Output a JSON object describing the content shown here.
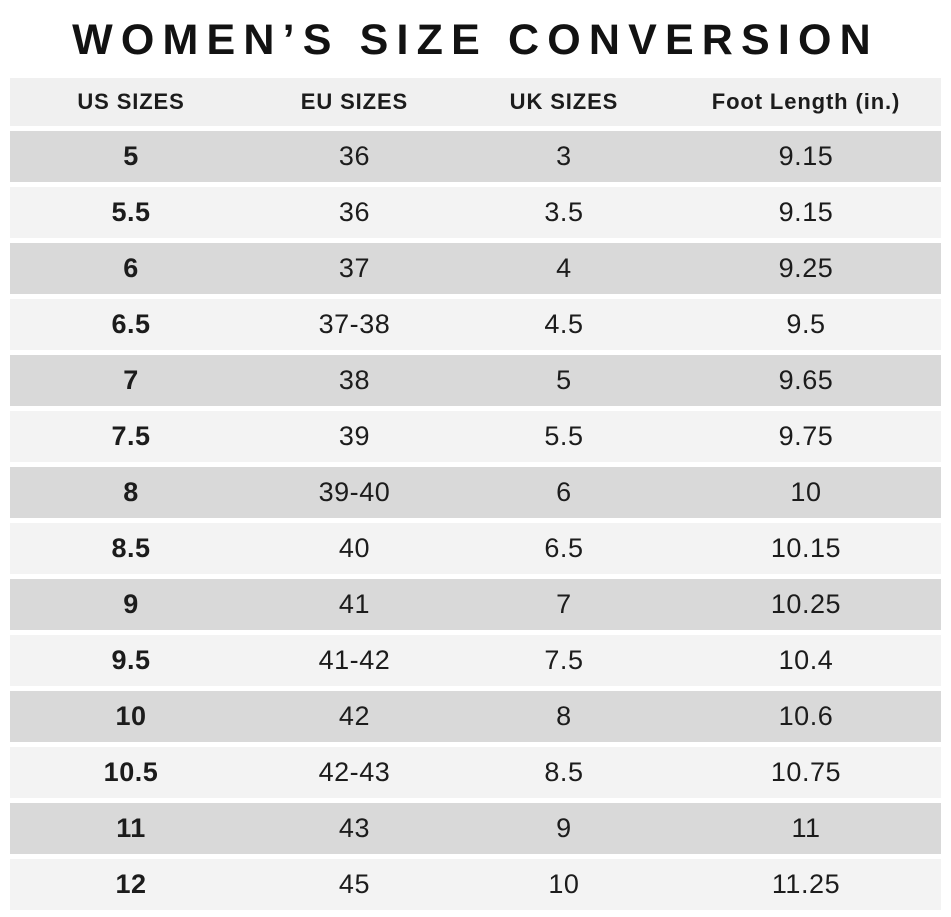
{
  "title": "WOMEN’S SIZE CONVERSION",
  "table": {
    "headers": [
      "US SIZES",
      "EU SIZES",
      "UK SIZES",
      "Foot Length (in.)"
    ],
    "rows": [
      [
        "5",
        "36",
        "3",
        "9.15"
      ],
      [
        "5.5",
        "36",
        "3.5",
        "9.15"
      ],
      [
        "6",
        "37",
        "4",
        "9.25"
      ],
      [
        "6.5",
        "37-38",
        "4.5",
        "9.5"
      ],
      [
        "7",
        "38",
        "5",
        "9.65"
      ],
      [
        "7.5",
        "39",
        "5.5",
        "9.75"
      ],
      [
        "8",
        "39-40",
        "6",
        "10"
      ],
      [
        "8.5",
        "40",
        "6.5",
        "10.15"
      ],
      [
        "9",
        "41",
        "7",
        "10.25"
      ],
      [
        "9.5",
        "41-42",
        "7.5",
        "10.4"
      ],
      [
        "10",
        "42",
        "8",
        "10.6"
      ],
      [
        "10.5",
        "42-43",
        "8.5",
        "10.75"
      ],
      [
        "11",
        "43",
        "9",
        "11"
      ],
      [
        "12",
        "45",
        "10",
        "11.25"
      ]
    ]
  },
  "colors": {
    "background": "#ffffff",
    "row_dark": "#d9d9d9",
    "row_light": "#f3f3f3",
    "header_bg": "#f0f0f0",
    "text": "#1c1c1c"
  },
  "chart_data": {
    "type": "table",
    "title": "WOMEN’S SIZE CONVERSION",
    "columns": [
      "US SIZES",
      "EU SIZES",
      "UK SIZES",
      "Foot Length (in.)"
    ],
    "us_sizes": [
      "5",
      "5.5",
      "6",
      "6.5",
      "7",
      "7.5",
      "8",
      "8.5",
      "9",
      "9.5",
      "10",
      "10.5",
      "11",
      "12"
    ],
    "eu_sizes": [
      "36",
      "36",
      "37",
      "37-38",
      "38",
      "39",
      "39-40",
      "40",
      "41",
      "41-42",
      "42",
      "42-43",
      "43",
      "45"
    ],
    "uk_sizes": [
      "3",
      "3.5",
      "4",
      "4.5",
      "5",
      "5.5",
      "6",
      "6.5",
      "7",
      "7.5",
      "8",
      "8.5",
      "9",
      "10"
    ],
    "foot_length_in": [
      9.15,
      9.15,
      9.25,
      9.5,
      9.65,
      9.75,
      10,
      10.15,
      10.25,
      10.4,
      10.6,
      10.75,
      11,
      11.25
    ],
    "layout": {
      "row_striping": "alternating gray, first data row dark",
      "alignment": "center",
      "grid": "off"
    }
  }
}
